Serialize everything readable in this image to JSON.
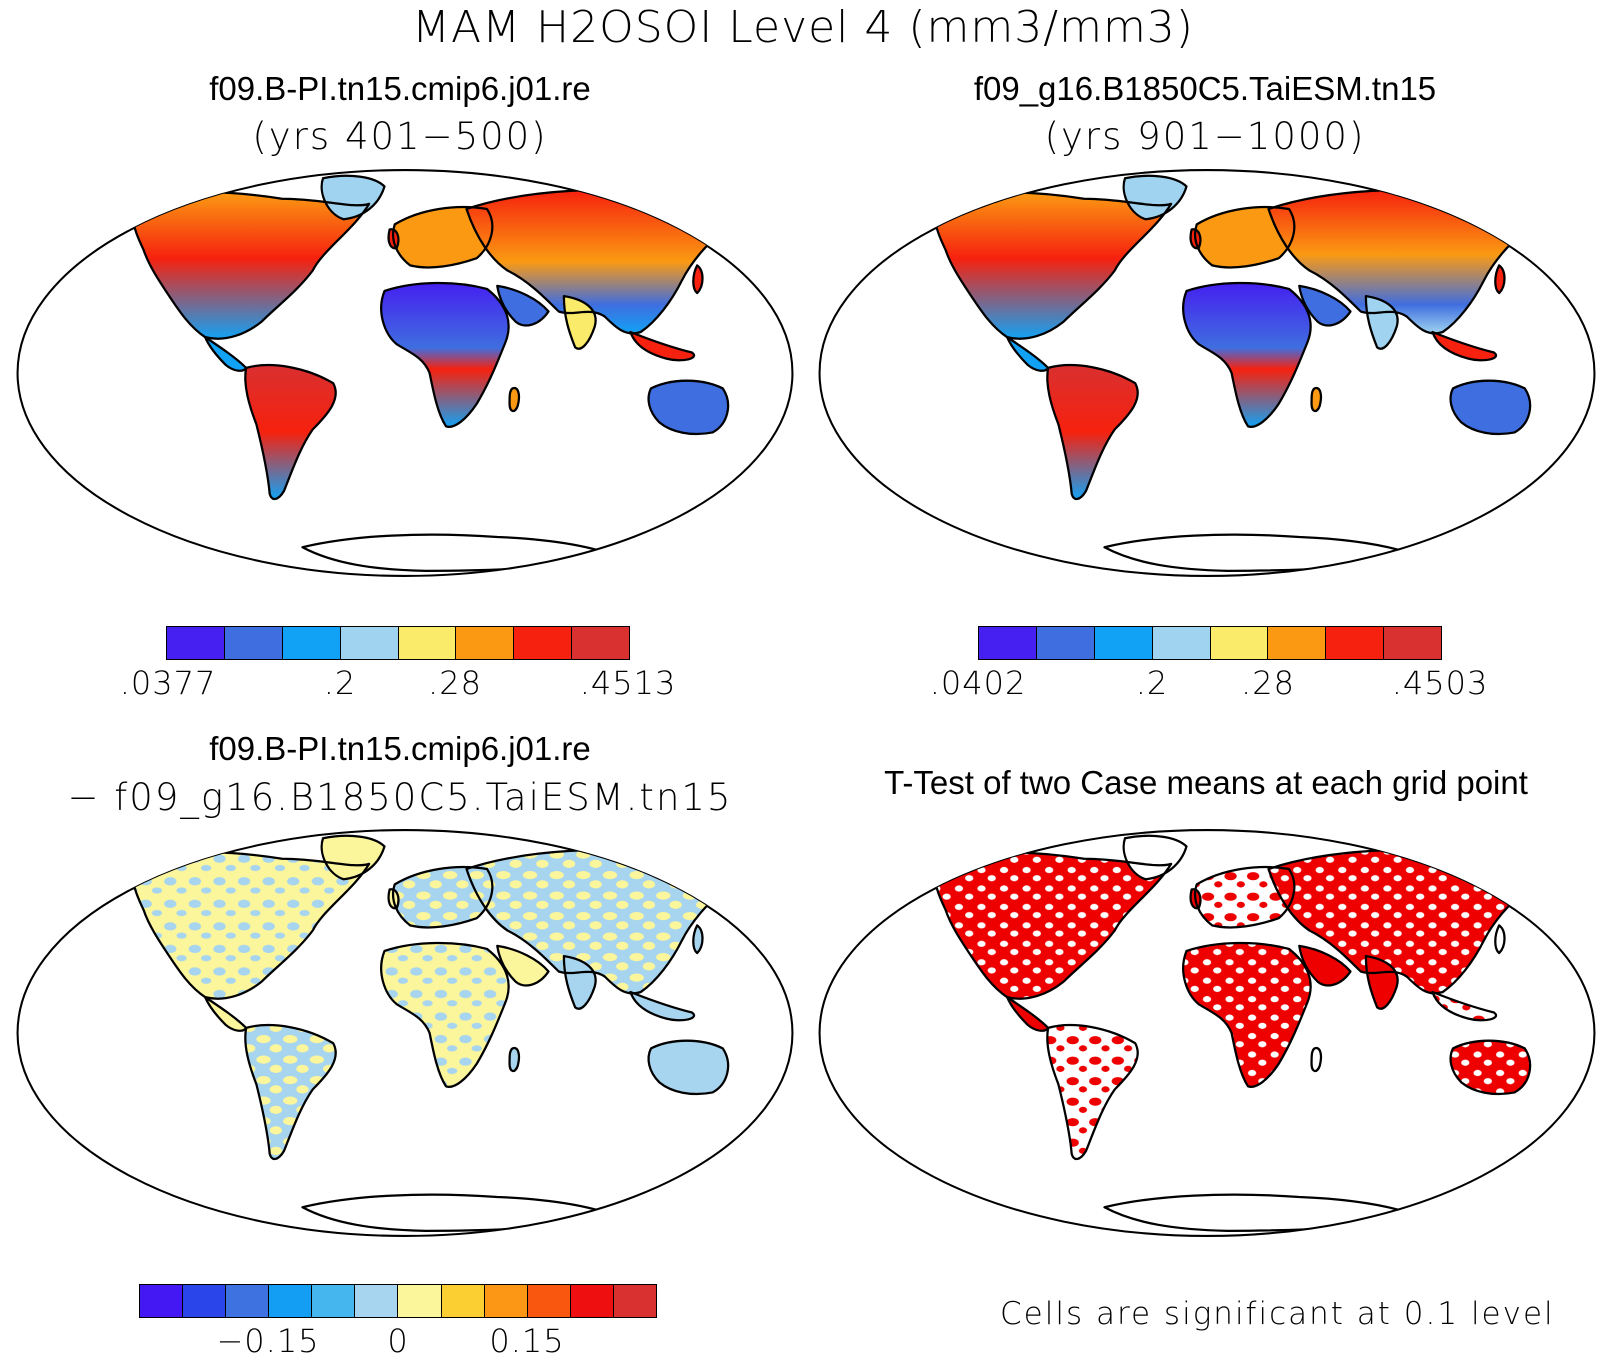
{
  "main_title": "MAM H2OSOI Level 4 (mm3/mm3)",
  "panels": [
    {
      "id": "case1",
      "title": "f09.B-PI.tn15.cmip6.j01.re",
      "subtitle": "(yrs 401−500)"
    },
    {
      "id": "case2",
      "title": "f09_g16.B1850C5.TaiESM.tn15",
      "subtitle": "(yrs 901−1000)"
    },
    {
      "id": "diff",
      "title": "f09.B-PI.tn15.cmip6.j01.re",
      "subtitle": "− f09_g16.B1850C5.TaiESM.tn15"
    },
    {
      "id": "ttest",
      "title": "T-Test of two Case means at each grid point",
      "subtitle": ""
    }
  ],
  "colorbars": {
    "case1": {
      "colors": [
        "#4520f0",
        "#3f6ee0",
        "#12a2f5",
        "#9fd3ef",
        "#fbeb6a",
        "#fb9a12",
        "#f6210e",
        "#d93030"
      ],
      "labels": [
        ".0377",
        ".2",
        ".28",
        ".4513"
      ]
    },
    "case2": {
      "colors": [
        "#4520f0",
        "#3f6ee0",
        "#12a2f5",
        "#9fd3ef",
        "#fbeb6a",
        "#fb9a12",
        "#f6210e",
        "#d93030"
      ],
      "labels": [
        ".0402",
        ".2",
        ".28",
        ".4503"
      ]
    },
    "diff": {
      "colors": [
        "#4318f2",
        "#2a45ea",
        "#3d72e0",
        "#139ef4",
        "#46b6ee",
        "#a7d5ef",
        "#fbf59c",
        "#fbcf32",
        "#fb9714",
        "#f95710",
        "#ee1010",
        "#d93030"
      ],
      "labels": [
        "−0.15",
        "0",
        "0.15"
      ]
    }
  },
  "significance_note": "Cells are significant at 0.1 level",
  "map_colors": {
    "land_wet": "#f6210e",
    "land_dry": "#4520f0",
    "diff_pos": "#fbf59c",
    "diff_neg": "#a7d5ef",
    "significant": "#ee0000"
  }
}
